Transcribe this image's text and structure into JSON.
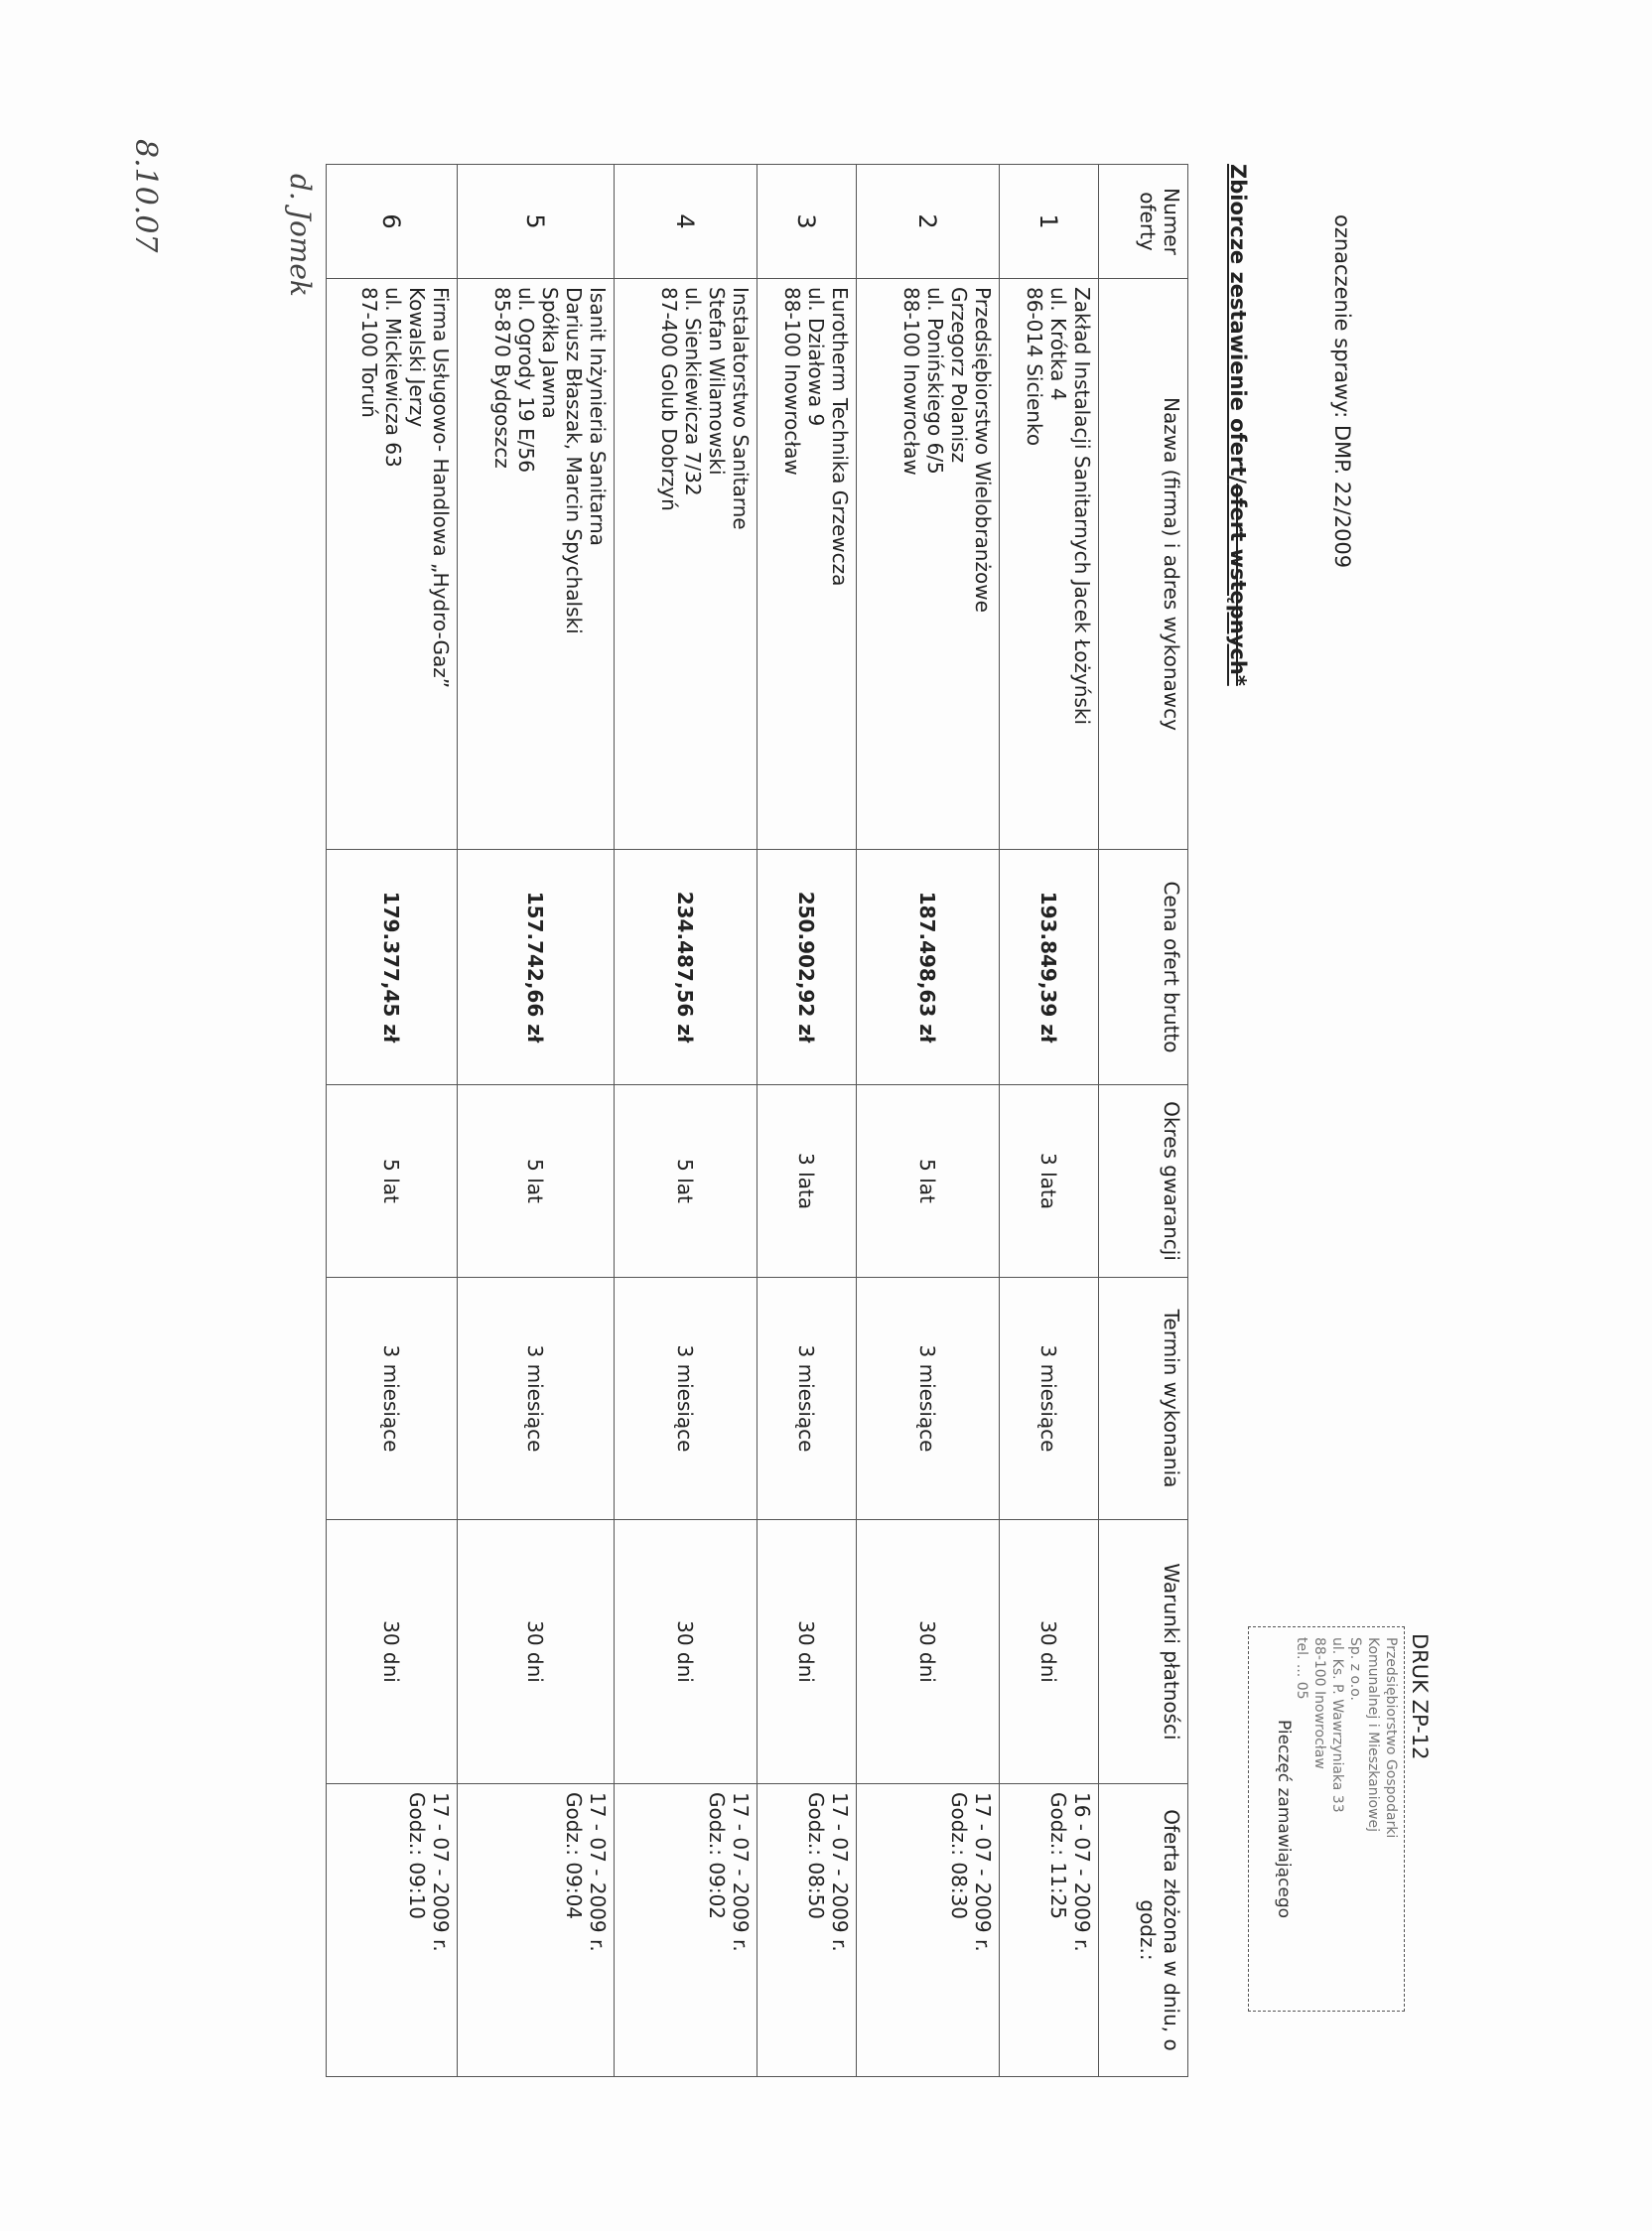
{
  "case_ref": "oznaczenie sprawy: DMP. 22/2009",
  "title_main": "Zbiorcze zestawienie ofert/",
  "title_struck": "ofert wstępnych*",
  "form_code": "DRUK ZP-12",
  "stamp": {
    "lines": [
      "Przedsiębiorstwo Gospodarki",
      "Komunalnej i Mieszkaniowej",
      "Sp. z o.o.",
      "ul. Ks. P. Wawrzyniaka 33",
      "88-100 Inowrocław",
      "tel. ... 05"
    ],
    "caption": "Pieczęć zamawiającego"
  },
  "table": {
    "headers": [
      "Numer oferty",
      "Nazwa (firma) i adres wykonawcy",
      "Cena ofert brutto",
      "Okres gwarancji",
      "Termin wykonania",
      "Warunki płatności",
      "Oferta złożona w dniu, o godz.:"
    ],
    "rows": [
      {
        "num": "1",
        "name": [
          "Zakład Instalacji Sanitarnych Jacek Łożyński",
          "ul. Krótka 4",
          "86-014 Sicienko"
        ],
        "price": "193.849,39 zł",
        "warranty": "3 lata",
        "term": "3 miesiące",
        "payment": "30 dni",
        "date": "16 - 07 - 2009 r.",
        "time": "Godz.: 11:25"
      },
      {
        "num": "2",
        "name": [
          "Przedsiębiorstwo Wielobranżowe",
          "Grzegorz Polanisz",
          "ul. Ponińskiego 6/5",
          "88-100 Inowrocław"
        ],
        "price": "187.498,63 zł",
        "warranty": "5 lat",
        "term": "3 miesiące",
        "payment": "30 dni",
        "date": "17 - 07 - 2009 r.",
        "time": "Godz.: 08:30"
      },
      {
        "num": "3",
        "name": [
          "Eurotherm Technika Grzewcza",
          "ul. Działowa 9",
          "88-100 Inowrocław"
        ],
        "price": "250.902,92 zł",
        "warranty": "3 lata",
        "term": "3 miesiące",
        "payment": "30 dni",
        "date": "17 - 07 - 2009 r.",
        "time": "Godz.: 08:50"
      },
      {
        "num": "4",
        "name": [
          "Instalatorstwo Sanitarne",
          "Stefan Wilamowski",
          "ul. Sienkiewicza 7/32",
          "87-400 Golub Dobrzyń"
        ],
        "price": "234.487,56 zł",
        "warranty": "5 lat",
        "term": "3 miesiące",
        "payment": "30 dni",
        "date": "17 - 07 - 2009 r.",
        "time": "Godz.: 09:02"
      },
      {
        "num": "5",
        "name": [
          "Isanit Inżynieria Sanitarna",
          "Dariusz Błaszak, Marcin Spychalski",
          "Spółka Jawna",
          "ul. Ogrody 19 E/56",
          "85-870 Bydgoszcz"
        ],
        "price": "157.742,66 zł",
        "warranty": "5 lat",
        "term": "3 miesiące",
        "payment": "30 dni",
        "date": "17 - 07 - 2009 r.",
        "time": "Godz.: 09:04"
      },
      {
        "num": "6",
        "name": [
          "Firma Usługowo- Handlowa „Hydro-Gaz”",
          "Kowalski Jerzy",
          "ul. Mickiewicza 63",
          "87-100 Toruń"
        ],
        "price": "179.377,45 zł",
        "warranty": "5 lat",
        "term": "3 miesiące",
        "payment": "30 dni",
        "date": "17 - 07 - 2009 r.",
        "time": "Godz.: 09:10"
      }
    ]
  },
  "handwritten": {
    "signature": "d. Jomek",
    "date": "8.10.07"
  }
}
